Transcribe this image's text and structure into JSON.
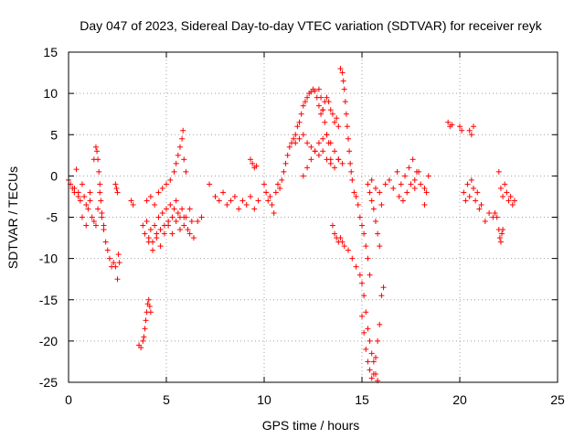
{
  "chart_data": {
    "type": "scatter",
    "title": "Day 047 of 2023, Sidereal Day-to-day VTEC variation (SDTVAR) for receiver reyk",
    "xlabel": "GPS time / hours",
    "ylabel": "SDTVAR / TECUs",
    "xlim": [
      0,
      25
    ],
    "ylim": [
      -25,
      15
    ],
    "xticks": [
      0,
      5,
      10,
      15,
      20,
      25
    ],
    "yticks": [
      -25,
      -20,
      -15,
      -10,
      -5,
      0,
      5,
      10,
      15
    ],
    "xtick_labels": [
      "0",
      "5",
      "10",
      "15",
      "20",
      "25"
    ],
    "ytick_labels": [
      "-25",
      "-20",
      "-15",
      "-10",
      "-5",
      "0",
      "5",
      "10",
      "15"
    ],
    "grid": true,
    "marker": "+",
    "color": "#ff0000",
    "series": [
      {
        "name": "SDTVAR",
        "x": [
          0.0,
          0.1,
          0.2,
          0.3,
          0.4,
          0.5,
          0.6,
          0.7,
          0.8,
          0.9,
          1.0,
          1.1,
          1.2,
          1.3,
          1.4,
          1.5,
          1.6,
          1.7,
          1.8,
          1.9,
          2.0,
          2.1,
          2.2,
          2.3,
          2.4,
          2.5,
          0.3,
          0.5,
          0.7,
          0.9,
          1.1,
          1.3,
          1.4,
          1.45,
          1.5,
          1.55,
          1.6,
          1.65,
          1.7,
          1.8,
          2.4,
          2.45,
          2.5,
          2.55,
          2.6,
          3.2,
          3.3,
          3.6,
          3.7,
          3.8,
          3.85,
          3.9,
          3.95,
          4.0,
          4.05,
          4.1,
          4.15,
          4.2,
          3.8,
          3.9,
          4.0,
          4.1,
          4.2,
          4.3,
          4.4,
          4.5,
          4.6,
          4.7,
          4.8,
          4.9,
          5.0,
          5.1,
          5.2,
          5.3,
          5.4,
          5.5,
          5.6,
          5.7,
          5.8,
          5.9,
          6.0,
          6.1,
          6.2,
          4.0,
          4.2,
          4.4,
          4.6,
          4.8,
          5.0,
          5.2,
          5.4,
          5.5,
          5.6,
          5.7,
          5.8,
          5.85,
          5.9,
          6.0,
          4.1,
          4.3,
          4.5,
          4.7,
          4.9,
          5.1,
          5.3,
          5.5,
          5.7,
          5.9,
          6.2,
          6.3,
          6.4,
          6.6,
          6.8,
          7.2,
          7.5,
          7.7,
          7.9,
          8.1,
          8.3,
          8.5,
          8.7,
          8.9,
          9.1,
          9.3,
          9.5,
          9.7,
          9.3,
          9.4,
          9.5,
          9.6,
          10.0,
          10.1,
          10.2,
          10.3,
          10.4,
          10.5,
          10.6,
          10.7,
          10.8,
          10.9,
          11.0,
          11.1,
          11.2,
          11.3,
          11.4,
          11.5,
          11.6,
          11.7,
          11.8,
          11.9,
          12.0,
          12.1,
          12.2,
          12.3,
          12.4,
          12.5,
          12.6,
          12.7,
          12.8,
          12.9,
          13.0,
          13.1,
          13.2,
          13.3,
          13.4,
          13.5,
          13.6,
          13.7,
          13.8,
          11.6,
          11.8,
          12.0,
          12.2,
          12.4,
          12.6,
          12.8,
          13.0,
          13.2,
          13.4,
          13.6,
          13.8,
          14.0,
          12.0,
          12.2,
          12.4,
          12.6,
          12.8,
          13.0,
          13.2,
          13.4,
          13.6,
          13.8,
          12.8,
          12.9,
          13.0,
          13.1,
          13.2,
          13.3,
          13.4,
          13.9,
          14.0,
          14.05,
          14.1,
          14.15,
          14.2,
          14.25,
          14.3,
          14.35,
          14.4,
          14.45,
          14.5,
          13.5,
          13.6,
          13.7,
          13.8,
          13.9,
          14.0,
          14.1,
          14.3,
          14.5,
          14.7,
          14.9,
          15.0,
          15.1,
          15.2,
          15.3,
          15.4,
          15.5,
          15.6,
          15.7,
          15.8,
          14.6,
          14.7,
          14.8,
          14.9,
          15.0,
          15.1,
          15.2,
          15.3,
          15.4,
          15.0,
          15.1,
          15.2,
          15.3,
          15.4,
          15.5,
          15.6,
          15.7,
          15.8,
          15.9,
          15.4,
          15.5,
          15.6,
          15.7,
          15.8,
          15.9,
          15.3,
          15.5,
          15.7,
          15.9,
          16.0,
          16.1,
          16.0,
          16.2,
          16.4,
          16.6,
          16.8,
          17.0,
          17.2,
          17.4,
          17.6,
          17.8,
          18.0,
          18.2,
          18.4,
          16.9,
          17.1,
          17.3,
          17.5,
          17.7,
          17.7,
          17.9,
          18.2,
          18.3,
          19.4,
          19.5,
          19.6,
          20.0,
          20.1,
          20.2,
          20.3,
          20.4,
          20.5,
          20.6,
          20.7,
          20.8,
          20.9,
          21.0,
          21.1,
          20.5,
          20.6,
          20.7,
          21.3,
          21.5,
          21.7,
          22.0,
          22.1,
          22.2,
          22.3,
          22.4,
          22.5,
          22.6,
          22.7,
          22.8,
          21.8,
          21.9,
          22.0,
          22.05,
          22.1,
          22.15,
          22.2
        ],
        "y": [
          -0.5,
          -1.0,
          -1.5,
          -2.0,
          0.8,
          -2.0,
          -3.0,
          -1.0,
          -2.5,
          -3.5,
          -4.0,
          -3.0,
          -5.0,
          -5.5,
          -6.0,
          -4.0,
          -2.0,
          -4.5,
          -6.0,
          -8.0,
          -9.0,
          -10.0,
          -11.0,
          -10.5,
          -11.0,
          -12.5,
          -1.5,
          -2.5,
          -5.0,
          -6.0,
          -2.0,
          2.0,
          3.5,
          3.0,
          2.0,
          0.5,
          -1.0,
          -3.0,
          -5.0,
          -6.5,
          -1.0,
          -1.5,
          -2.0,
          -9.5,
          -10.5,
          -3.0,
          -3.5,
          -20.5,
          -20.8,
          -20.0,
          -19.5,
          -18.5,
          -17.5,
          -16.5,
          -15.5,
          -15.0,
          -15.8,
          -16.5,
          -6.0,
          -7.0,
          -5.5,
          -7.5,
          -6.5,
          -8.0,
          -6.0,
          -7.0,
          -5.0,
          -6.5,
          -4.5,
          -6.0,
          -4.0,
          -5.5,
          -3.5,
          -5.0,
          -4.0,
          -3.0,
          -4.5,
          -5.0,
          -4.0,
          -6.0,
          -5.0,
          -6.5,
          -7.0,
          -3.0,
          -2.5,
          -3.5,
          -2.0,
          -1.5,
          -1.0,
          -0.5,
          0.5,
          1.5,
          2.5,
          3.5,
          4.5,
          5.5,
          2.0,
          0.5,
          -8.0,
          -9.0,
          -7.5,
          -8.5,
          -7.0,
          -6.0,
          -7.0,
          -5.5,
          -6.5,
          -5.0,
          -4.0,
          -5.5,
          -7.5,
          -5.5,
          -5.0,
          -1.0,
          -2.5,
          -3.0,
          -2.0,
          -3.5,
          -3.0,
          -2.5,
          -4.0,
          -3.0,
          -3.5,
          -2.5,
          -4.0,
          -3.0,
          2.0,
          1.5,
          1.0,
          1.2,
          -1.0,
          -2.0,
          -3.0,
          -2.5,
          -3.5,
          -4.5,
          -2.0,
          -1.0,
          -1.5,
          -0.5,
          0.5,
          1.5,
          2.5,
          3.5,
          4.0,
          4.5,
          5.0,
          6.0,
          6.5,
          7.5,
          8.5,
          9.0,
          9.5,
          10.0,
          10.2,
          10.5,
          10.3,
          9.5,
          8.5,
          7.5,
          8.0,
          9.0,
          9.5,
          9.0,
          8.0,
          7.5,
          6.5,
          7.0,
          6.0,
          4.0,
          4.5,
          5.0,
          4.0,
          3.5,
          3.0,
          2.5,
          3.0,
          2.0,
          1.5,
          1.0,
          2.0,
          1.5,
          0.0,
          1.0,
          2.0,
          3.0,
          4.0,
          4.5,
          5.0,
          4.0,
          3.0,
          2.0,
          10.5,
          9.5,
          8.0,
          6.5,
          5.0,
          4.0,
          2.0,
          13.0,
          12.5,
          11.5,
          10.5,
          9.0,
          7.5,
          6.0,
          4.5,
          3.0,
          1.5,
          0.5,
          -0.5,
          -6.0,
          -7.0,
          -7.5,
          -8.0,
          -7.5,
          -8.0,
          -8.5,
          -9.0,
          -10.0,
          -11.0,
          -12.0,
          -13.0,
          -14.5,
          -16.5,
          -18.5,
          -20.0,
          -21.5,
          -22.5,
          -24.0,
          -24.8,
          -2.0,
          -2.5,
          -3.5,
          -5.0,
          -6.0,
          -7.0,
          -8.5,
          -10.0,
          -12.0,
          -17.0,
          -19.0,
          -21.0,
          -22.5,
          -23.5,
          -24.5,
          -24.0,
          -22.0,
          -20.0,
          -18.0,
          -2.0,
          -3.0,
          -4.0,
          -5.5,
          -7.0,
          -8.5,
          -1.0,
          -0.5,
          -1.5,
          -2.0,
          -14.5,
          -13.5,
          -3.5,
          -1.0,
          -0.5,
          -1.5,
          0.5,
          -1.0,
          0.0,
          1.0,
          2.0,
          0.5,
          -1.0,
          -1.5,
          0.0,
          -2.5,
          -3.0,
          -2.0,
          -1.0,
          -1.5,
          -0.5,
          0.5,
          -3.5,
          -2.0,
          6.5,
          6.0,
          6.2,
          6.0,
          5.5,
          -2.0,
          -3.0,
          -1.0,
          -2.5,
          -0.5,
          -1.5,
          -3.0,
          -2.0,
          -4.0,
          -3.5,
          5.5,
          5.0,
          6.0,
          -5.5,
          -4.5,
          -5.0,
          0.5,
          -1.5,
          -2.5,
          -1.0,
          -2.0,
          -3.0,
          -2.5,
          -3.5,
          -3.0,
          -4.5,
          -5.0,
          -6.5,
          -7.5,
          -8.0,
          -7.0,
          -6.5
        ]
      }
    ]
  }
}
